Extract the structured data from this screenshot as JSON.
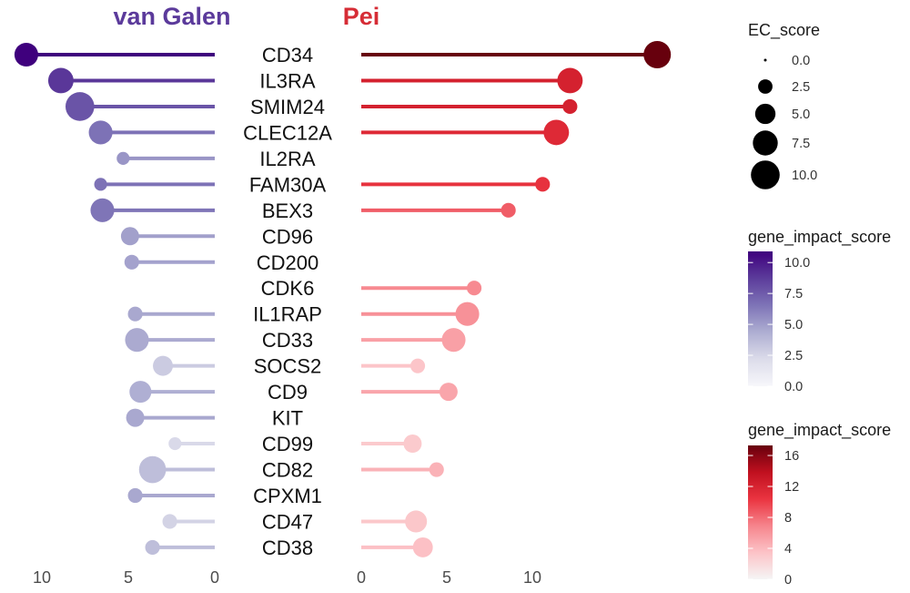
{
  "chart_data": {
    "type": "bar",
    "categories": [
      "CD34",
      "IL3RA",
      "SMIM24",
      "CLEC12A",
      "IL2RA",
      "FAM30A",
      "BEX3",
      "CD96",
      "CD200",
      "CDK6",
      "IL1RAP",
      "CD33",
      "SOCS2",
      "CD9",
      "KIT",
      "CD99",
      "CD82",
      "CPXM1",
      "CD47",
      "CD38"
    ],
    "series": [
      {
        "name": "van Galen",
        "title_color": "#5b3a9b",
        "x_reversed": true,
        "xlim": [
          0,
          11.6
        ],
        "xticks": [
          10,
          5,
          0
        ],
        "gene_impact_score": [
          10.9,
          8.9,
          7.8,
          6.6,
          5.3,
          6.6,
          6.5,
          4.9,
          4.8,
          null,
          4.6,
          4.5,
          3.0,
          4.3,
          4.6,
          2.3,
          3.6,
          4.6,
          2.6,
          3.6
        ],
        "ec_score": [
          6.8,
          7.8,
          10.0,
          6.8,
          2.0,
          2.0,
          6.8,
          4.0,
          2.6,
          null,
          2.6,
          6.8,
          4.8,
          5.8,
          4.0,
          2.0,
          8.8,
          2.6,
          2.6,
          2.6
        ]
      },
      {
        "name": "Pei",
        "title_color": "#d62d36",
        "x_reversed": false,
        "xlim": [
          0,
          18
        ],
        "xticks": [
          0,
          5,
          10
        ],
        "gene_impact_score": [
          17.3,
          12.2,
          12.2,
          11.4,
          null,
          10.6,
          8.6,
          null,
          null,
          6.6,
          6.2,
          5.4,
          3.3,
          5.1,
          null,
          3.0,
          4.4,
          null,
          3.2,
          3.6
        ],
        "ec_score": [
          9.0,
          7.8,
          2.6,
          7.8,
          null,
          2.6,
          2.6,
          null,
          null,
          2.6,
          6.8,
          6.8,
          2.6,
          4.0,
          null,
          4.0,
          2.6,
          null,
          5.8,
          4.8
        ]
      }
    ],
    "legends": {
      "size": {
        "title": "EC_score",
        "values": [
          0,
          2.5,
          5,
          7.5,
          10
        ],
        "labels": [
          "0.0",
          "2.5",
          "5.0",
          "7.5",
          "10.0"
        ]
      },
      "color": [
        {
          "title": "gene_impact_score",
          "limits": [
            0,
            10.9
          ],
          "ticks": [
            0,
            2.5,
            5,
            7.5,
            10
          ],
          "labels": [
            "0.0",
            "2.5",
            "5.0",
            "7.5",
            "10.0"
          ],
          "colors": [
            "#f7f7fb",
            "#dcdcea",
            "#aeaed2",
            "#7e74b7",
            "#5c3c9b",
            "#3f007d"
          ]
        },
        {
          "title": "gene_impact_score",
          "limits": [
            0,
            17.3
          ],
          "ticks": [
            0,
            4,
            8,
            12,
            16
          ],
          "labels": [
            "0",
            "4",
            "8",
            "12",
            "16"
          ],
          "colors": [
            "#f5f5f5",
            "#fcc3c7",
            "#f6848c",
            "#ea3440",
            "#c0101f",
            "#67000d"
          ]
        }
      ]
    }
  }
}
